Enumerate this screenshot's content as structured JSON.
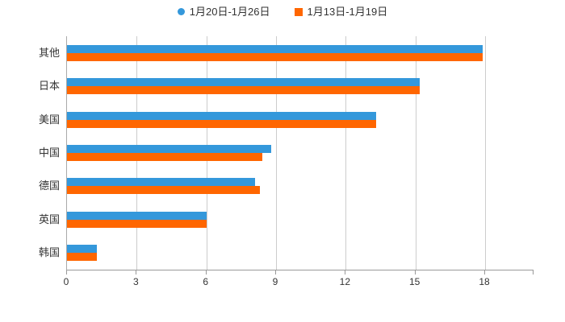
{
  "legend": {
    "items": [
      {
        "label": "1月20日-1月26日",
        "marker": "circle"
      },
      {
        "label": "1月13日-1月19日",
        "marker": "square"
      }
    ]
  },
  "chart_data": {
    "type": "bar",
    "orientation": "horizontal",
    "title": "",
    "xlabel": "",
    "ylabel": "",
    "categories": [
      "其他",
      "日本",
      "美国",
      "中国",
      "德国",
      "英国",
      "韩国"
    ],
    "series": [
      {
        "name": "1月20日-1月26日",
        "color": "#3498db",
        "values": [
          17.9,
          15.2,
          13.3,
          8.8,
          8.1,
          6.0,
          1.3
        ]
      },
      {
        "name": "1月13日-1月19日",
        "color": "#ff6600",
        "values": [
          17.9,
          15.2,
          13.3,
          8.4,
          8.3,
          6.0,
          1.3
        ]
      }
    ],
    "xticks": [
      0,
      3,
      6,
      9,
      12,
      15,
      18
    ],
    "xlim": [
      0,
      20.1
    ],
    "grid": true,
    "legend_position": "top",
    "colors": {
      "grid": "#cccccc",
      "axis": "#999999",
      "text": "#333333",
      "background": "#ffffff"
    }
  }
}
